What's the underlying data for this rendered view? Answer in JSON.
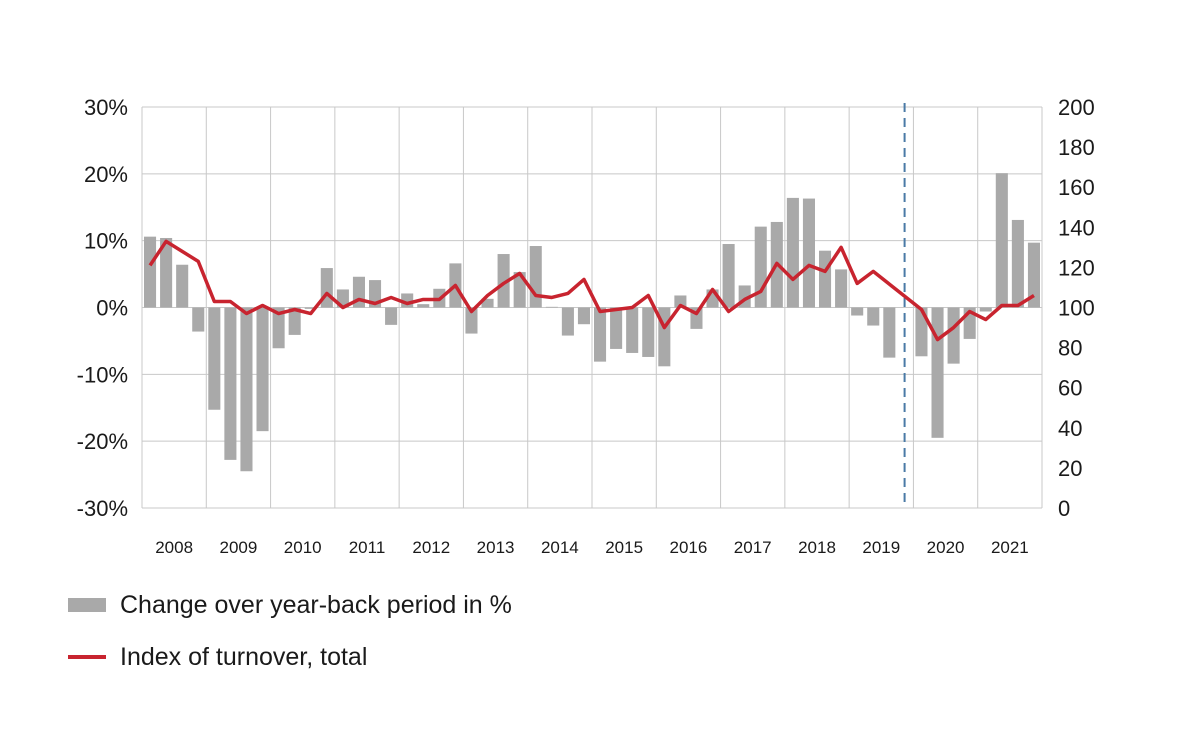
{
  "colors": {
    "bars": "#a9a9a9",
    "line": "#c8242f",
    "grid": "#c8c8c8",
    "marker": "#4a7aa6"
  },
  "chart_data": {
    "type": "bar",
    "left_axis": {
      "range": [
        -30,
        30
      ],
      "ticks": [
        "30%",
        "20%",
        "10%",
        "0%",
        "-10%",
        "-20%",
        "-30%"
      ],
      "tick_values": [
        30,
        20,
        10,
        0,
        -10,
        -20,
        -30
      ]
    },
    "right_axis": {
      "range": [
        0,
        200
      ],
      "ticks": [
        "200",
        "180",
        "160",
        "140",
        "120",
        "100",
        "80",
        "60",
        "40",
        "20",
        "0"
      ],
      "tick_values": [
        200,
        180,
        160,
        140,
        120,
        100,
        80,
        60,
        40,
        20,
        0
      ]
    },
    "years": [
      "2008",
      "2009",
      "2010",
      "2011",
      "2012",
      "2013",
      "2014",
      "2015",
      "2016",
      "2017",
      "2018",
      "2019",
      "2020",
      "2021"
    ],
    "quarters_per_year": 4,
    "vertical_gridlines": true,
    "marker": {
      "type": "dashed-line",
      "position": "between 2019 and 2020"
    },
    "series": [
      {
        "name": "Change over year-back period in %",
        "type": "bar",
        "axis": "left",
        "values": [
          10.6,
          10.4,
          6.4,
          -3.6,
          -15.3,
          -22.8,
          -24.5,
          -18.5,
          -6.1,
          -4.1,
          -0.2,
          5.9,
          2.7,
          4.6,
          4.1,
          -2.6,
          2.1,
          0.5,
          2.8,
          6.6,
          -3.9,
          1.3,
          8.0,
          5.3,
          9.2,
          0.1,
          -4.2,
          -2.5,
          -8.1,
          -6.2,
          -6.8,
          -7.4,
          -8.8,
          1.8,
          -3.2,
          2.7,
          9.5,
          3.3,
          12.1,
          12.8,
          16.4,
          16.3,
          8.5,
          5.7,
          -1.2,
          -2.7,
          -7.5,
          0,
          -7.3,
          -19.5,
          -8.4,
          -4.7,
          -0.6,
          20.1,
          13.1,
          9.7
        ]
      },
      {
        "name": "Index of turnover, total",
        "type": "line",
        "axis": "right",
        "values": [
          121,
          133,
          128,
          123,
          103,
          103,
          97,
          101,
          97,
          99,
          97,
          107,
          100,
          104,
          102,
          105,
          102,
          104,
          104,
          111,
          98,
          106,
          112,
          117,
          106,
          105,
          107,
          114,
          98,
          99,
          100,
          106,
          90,
          101,
          97,
          109,
          98,
          104,
          108,
          122,
          114,
          121,
          118,
          130,
          112,
          118,
          null,
          null,
          99,
          84,
          90,
          98,
          94,
          101,
          101,
          106
        ]
      }
    ]
  },
  "legend": {
    "bars_label": "Change over year-back period in %",
    "line_label": "Index of turnover, total"
  }
}
